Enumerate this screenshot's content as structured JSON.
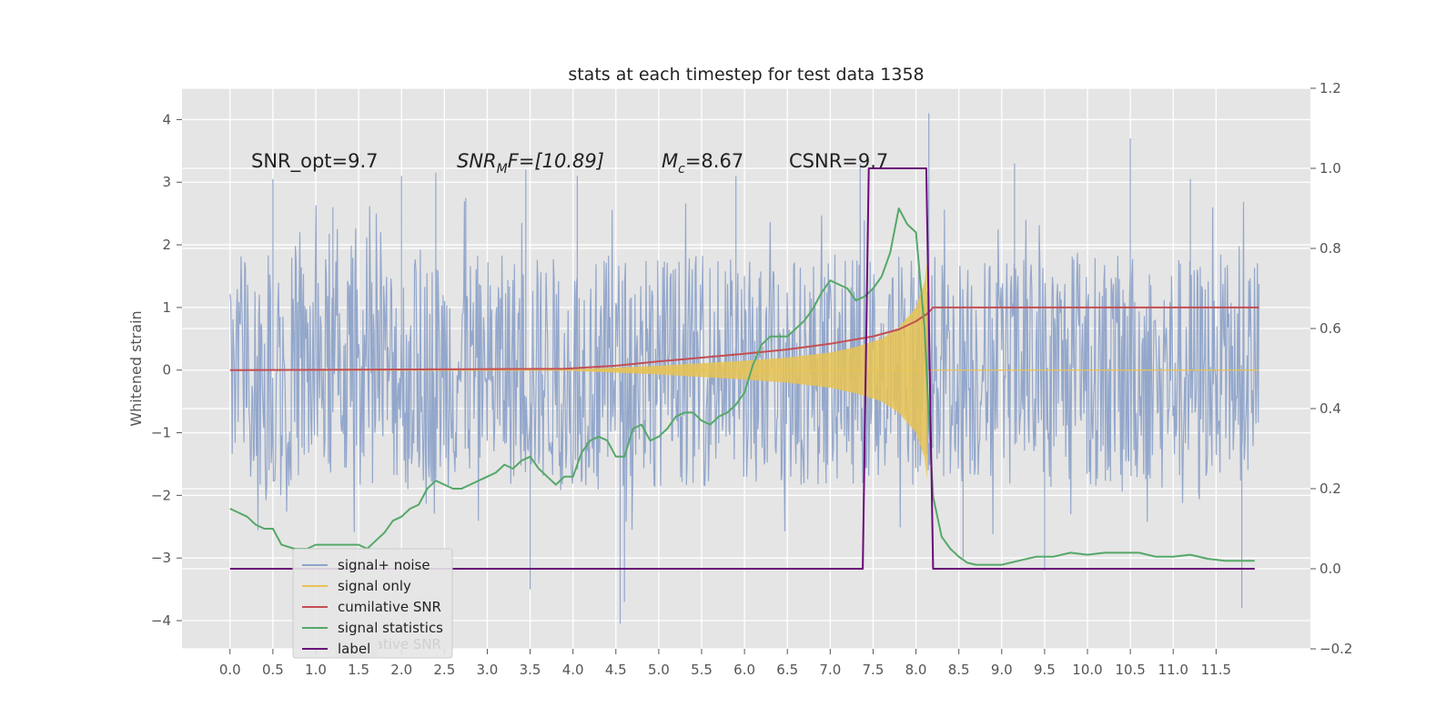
{
  "chart_data": {
    "type": "line",
    "title": "stats at each timestep for test data 1358",
    "ylabel": "Whitened strain",
    "ylabel_right": "",
    "xlim": [
      -0.56,
      12.6
    ],
    "ylim": [
      -4.45,
      4.5
    ],
    "ylim_right": [
      -0.2,
      1.2
    ],
    "x_ticks": [
      "0.0",
      "0.5",
      "1.0",
      "1.5",
      "2.0",
      "2.5",
      "3.0",
      "3.5",
      "4.0",
      "4.5",
      "5.0",
      "5.5",
      "6.0",
      "6.5",
      "7.0",
      "7.5",
      "8.0",
      "8.5",
      "9.0",
      "9.5",
      "10.0",
      "10.5",
      "11.0",
      "11.5"
    ],
    "y_ticks": [
      "4",
      "3",
      "2",
      "1",
      "0",
      "−1",
      "−2",
      "−3",
      "−4"
    ],
    "y_ticks_right": [
      "1.2",
      "1.0",
      "0.8",
      "0.6",
      "0.4",
      "0.2",
      "0.0",
      "−0.2"
    ],
    "grid": true,
    "annotations": {
      "snr_opt": "SNR_opt=9.7",
      "snr_mf_base": "SNR",
      "snr_mf_sub": "M",
      "snr_mf_rest": "F=[10.89]",
      "mc_base": "M",
      "mc_sub": "c",
      "mc_rest": "=8.67",
      "csnr": "CSNR=9.7"
    },
    "legend": {
      "placement": "lower-left",
      "entries": [
        {
          "label": "signal+ noise",
          "color": "#8ea3c9"
        },
        {
          "label": "signal only",
          "color": "#e8c352"
        },
        {
          "label": "cumilative SNR",
          "color": "#c44e52"
        },
        {
          "label": "signal statistics",
          "color": "#55a868"
        },
        {
          "label": "label",
          "color": "#6a0a78"
        }
      ],
      "ghost_text": "cumilative SNR"
    },
    "series": [
      {
        "name": "signal+ noise",
        "axis": "left",
        "style": "noise-band",
        "color": "#8ea3c9",
        "x_range": [
          0.0,
          12.0
        ],
        "envelope": 1.85,
        "peaks": [
          [
            0.5,
            3.05
          ],
          [
            1.2,
            2.6
          ],
          [
            2.0,
            3.1
          ],
          [
            2.4,
            3.15
          ],
          [
            2.75,
            2.75
          ],
          [
            3.45,
            3.2
          ],
          [
            3.5,
            -3.5
          ],
          [
            4.05,
            3.1
          ],
          [
            4.55,
            -4.05
          ],
          [
            4.6,
            -3.7
          ],
          [
            5.9,
            3.1
          ],
          [
            6.0,
            1.5
          ],
          [
            7.35,
            3.3
          ],
          [
            8.15,
            4.1
          ],
          [
            8.55,
            -3.0
          ],
          [
            9.15,
            3.3
          ],
          [
            9.5,
            -3.2
          ],
          [
            10.5,
            3.7
          ],
          [
            11.8,
            -3.8
          ],
          [
            11.2,
            3.05
          ]
        ]
      },
      {
        "name": "signal only",
        "axis": "left",
        "style": "chirp",
        "color": "#e8c352",
        "x": [
          3.8,
          4.5,
          5.0,
          5.5,
          6.0,
          6.5,
          7.0,
          7.3,
          7.6,
          7.8,
          8.0,
          8.1,
          8.13
        ],
        "amplitude": [
          0.0,
          0.04,
          0.07,
          0.11,
          0.15,
          0.2,
          0.28,
          0.37,
          0.5,
          0.68,
          1.0,
          1.4,
          1.75
        ]
      },
      {
        "name": "cumilative SNR",
        "axis": "left",
        "color": "#c44e52",
        "x": [
          0.0,
          2.0,
          3.9,
          4.5,
          5.0,
          5.5,
          6.0,
          6.5,
          7.0,
          7.5,
          7.8,
          8.0,
          8.13,
          8.2,
          12.0
        ],
        "y": [
          0.0,
          0.01,
          0.02,
          0.07,
          0.14,
          0.2,
          0.26,
          0.33,
          0.42,
          0.54,
          0.65,
          0.78,
          0.9,
          1.0,
          1.0
        ]
      },
      {
        "name": "signal statistics",
        "axis": "right",
        "color": "#55a868",
        "x": [
          0.0,
          0.1,
          0.2,
          0.3,
          0.4,
          0.5,
          0.6,
          0.75,
          0.9,
          1.0,
          1.1,
          1.2,
          1.3,
          1.4,
          1.5,
          1.6,
          1.7,
          1.8,
          1.9,
          2.0,
          2.1,
          2.2,
          2.3,
          2.4,
          2.5,
          2.6,
          2.7,
          2.8,
          2.9,
          3.0,
          3.1,
          3.2,
          3.3,
          3.4,
          3.5,
          3.6,
          3.7,
          3.8,
          3.9,
          4.0,
          4.1,
          4.2,
          4.3,
          4.4,
          4.5,
          4.6,
          4.7,
          4.8,
          4.9,
          5.0,
          5.1,
          5.2,
          5.3,
          5.4,
          5.5,
          5.6,
          5.7,
          5.8,
          5.9,
          6.0,
          6.1,
          6.2,
          6.3,
          6.4,
          6.5,
          6.6,
          6.7,
          6.8,
          6.9,
          7.0,
          7.1,
          7.2,
          7.3,
          7.4,
          7.5,
          7.6,
          7.7,
          7.8,
          7.9,
          8.0,
          8.1,
          8.15,
          8.2,
          8.3,
          8.4,
          8.5,
          8.6,
          8.7,
          8.8,
          9.0,
          9.2,
          9.4,
          9.6,
          9.8,
          10.0,
          10.2,
          10.4,
          10.6,
          10.8,
          11.0,
          11.2,
          11.4,
          11.6,
          11.8,
          11.95
        ],
        "y": [
          0.15,
          0.14,
          0.13,
          0.11,
          0.1,
          0.1,
          0.06,
          0.05,
          0.05,
          0.06,
          0.06,
          0.06,
          0.06,
          0.06,
          0.06,
          0.05,
          0.07,
          0.09,
          0.12,
          0.13,
          0.15,
          0.16,
          0.2,
          0.22,
          0.21,
          0.2,
          0.2,
          0.21,
          0.22,
          0.23,
          0.24,
          0.26,
          0.25,
          0.27,
          0.28,
          0.25,
          0.23,
          0.21,
          0.23,
          0.23,
          0.29,
          0.32,
          0.33,
          0.32,
          0.28,
          0.28,
          0.35,
          0.36,
          0.32,
          0.33,
          0.35,
          0.38,
          0.39,
          0.39,
          0.37,
          0.36,
          0.38,
          0.39,
          0.41,
          0.44,
          0.51,
          0.56,
          0.58,
          0.58,
          0.58,
          0.6,
          0.62,
          0.65,
          0.69,
          0.72,
          0.71,
          0.7,
          0.67,
          0.68,
          0.7,
          0.73,
          0.79,
          0.9,
          0.86,
          0.84,
          0.6,
          0.38,
          0.18,
          0.08,
          0.05,
          0.03,
          0.015,
          0.01,
          0.01,
          0.01,
          0.02,
          0.03,
          0.03,
          0.04,
          0.035,
          0.04,
          0.04,
          0.04,
          0.03,
          0.03,
          0.035,
          0.025,
          0.02,
          0.02,
          0.02
        ]
      },
      {
        "name": "label",
        "axis": "right",
        "color": "#6a0a78",
        "x": [
          0.0,
          7.38,
          7.45,
          8.12,
          8.2,
          11.95
        ],
        "y": [
          0.0,
          0.0,
          1.0,
          1.0,
          0.0,
          0.0
        ]
      }
    ]
  }
}
